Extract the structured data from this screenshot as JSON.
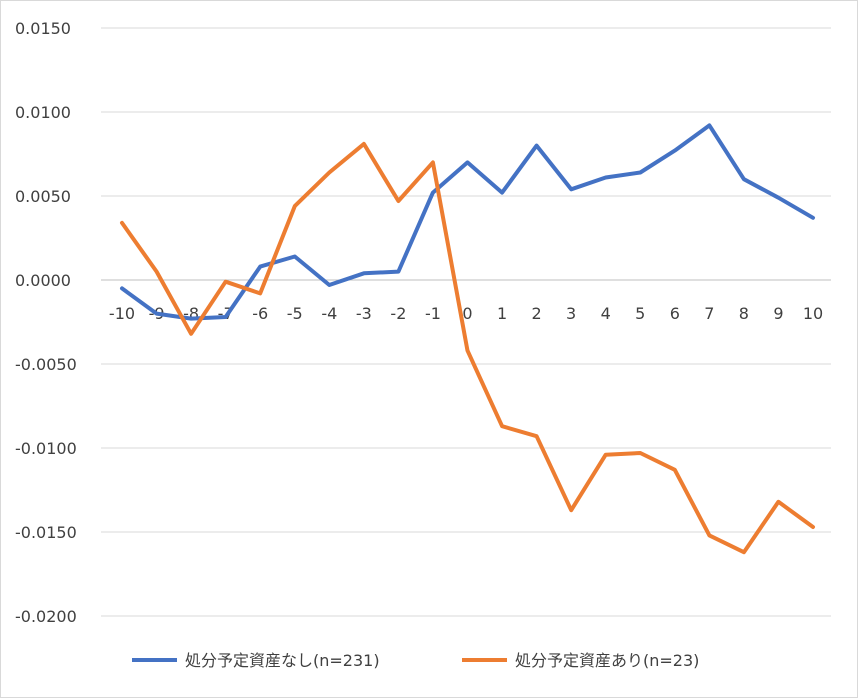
{
  "chart_data": {
    "type": "line",
    "title": "",
    "xlabel": "",
    "ylabel": "",
    "x": [
      -10,
      -9,
      -8,
      -7,
      -6,
      -5,
      -4,
      -3,
      -2,
      -1,
      0,
      1,
      2,
      3,
      4,
      5,
      6,
      7,
      8,
      9,
      10
    ],
    "x_tick_labels": [
      "-10",
      "-9",
      "-8",
      "-7",
      "-6",
      "-5",
      "-4",
      "-3",
      "-2",
      "-1",
      "0",
      "1",
      "2",
      "3",
      "4",
      "5",
      "6",
      "7",
      "8",
      "9",
      "10"
    ],
    "ylim": [
      -0.02,
      0.015
    ],
    "y_ticks": [
      0.015,
      0.01,
      0.005,
      0,
      -0.005,
      -0.01,
      -0.015,
      -0.02
    ],
    "y_tick_labels": [
      "0.0150",
      "0.0100",
      "0.0050",
      "0.0000",
      "-0.0050",
      "-0.0100",
      "-0.0150",
      "-0.0200"
    ],
    "grid": true,
    "legend_position": "bottom",
    "series": [
      {
        "name": "処分予定資産なし(n=231)",
        "color": "#4472C4",
        "values": [
          -0.0005,
          -0.002,
          -0.0023,
          -0.0022,
          0.0008,
          0.0014,
          -0.0003,
          0.0004,
          0.0005,
          0.0052,
          0.007,
          0.0052,
          0.008,
          0.0054,
          0.0061,
          0.0064,
          0.0077,
          0.0092,
          0.006,
          0.0049,
          0.0037
        ]
      },
      {
        "name": "処分予定資産あり(n=23)",
        "color": "#ED7D31",
        "values": [
          0.0034,
          0.0005,
          -0.0032,
          -0.0001,
          -0.0008,
          0.0044,
          0.0064,
          0.0081,
          0.0047,
          0.007,
          -0.0042,
          -0.0087,
          -0.0093,
          -0.0137,
          -0.0104,
          -0.0103,
          -0.0113,
          -0.0152,
          -0.0162,
          -0.0132,
          -0.0147
        ]
      }
    ]
  }
}
